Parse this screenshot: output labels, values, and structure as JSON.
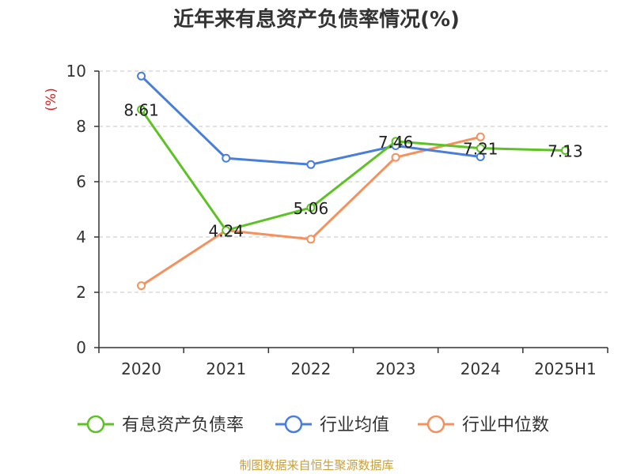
{
  "chart_data": {
    "type": "line",
    "title": "近年来有息资产负债率情况(%)",
    "ylabel": "(%)",
    "xlabel": "",
    "categories": [
      "2020",
      "2021",
      "2022",
      "2023",
      "2024",
      "2025H1"
    ],
    "ylim": [
      0,
      10
    ],
    "yticks": [
      "0",
      "2",
      "4",
      "6",
      "8",
      "10"
    ],
    "grid": true,
    "legend_position": "bottom",
    "series": [
      {
        "name": "有息资产负债率",
        "color": "#5ec227",
        "values": [
          8.61,
          4.24,
          5.06,
          7.46,
          7.21,
          7.13
        ],
        "labels": [
          "8.61",
          "4.24",
          "5.06",
          "7.46",
          "7.21",
          "7.13"
        ]
      },
      {
        "name": "行业均值",
        "color": "#4a7fd9",
        "values": [
          9.82,
          6.85,
          6.62,
          7.3,
          6.9,
          null
        ]
      },
      {
        "name": "行业中位数",
        "color": "#f5915e",
        "values": [
          2.24,
          4.24,
          3.92,
          6.88,
          7.62,
          null
        ]
      }
    ]
  },
  "source_note": "制图数据来自恒生聚源数据库"
}
